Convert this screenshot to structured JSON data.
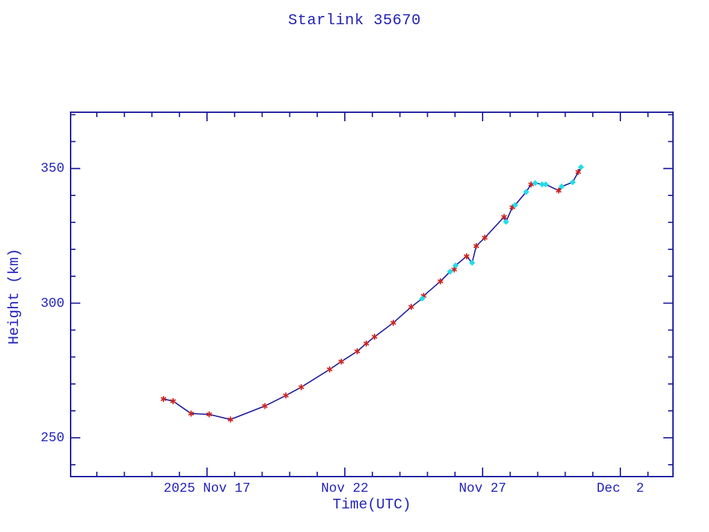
{
  "window": {
    "background": "#ffffff"
  },
  "colors": {
    "text": "#2323bb",
    "frame": "#1c1c9e",
    "line": "#1c1c9e",
    "observed_marker": "#cc2222",
    "predicted_marker": "#22dde8"
  },
  "chart_data": {
    "type": "line",
    "title": "Starlink 35670",
    "xlabel": "Time(UTC)",
    "ylabel": "Height (km)",
    "legend": "none",
    "grid": false,
    "x_axis": {
      "unit": "date UTC, expressed as day-of-November-2025 (Dec 2 = 32)",
      "range_days": [
        12.05,
        33.91
      ],
      "minor_tick_every_days": 1,
      "major_ticks": [
        {
          "day": 17,
          "label": "2025 Nov 17"
        },
        {
          "day": 22,
          "label": "Nov 22"
        },
        {
          "day": 27,
          "label": "Nov 27"
        },
        {
          "day": 32,
          "label": "Dec  2"
        }
      ]
    },
    "y_axis": {
      "unit": "km",
      "range_km": [
        235.6,
        370.9
      ],
      "minor_tick_every_km": 10,
      "major_ticks": [
        {
          "value": 250,
          "label": "250"
        },
        {
          "value": 300,
          "label": "300"
        },
        {
          "value": 350,
          "label": "350"
        }
      ]
    },
    "series": [
      {
        "name": "observed-height",
        "marker": "red-asterisk",
        "color": "#cc2222",
        "points": [
          [
            15.42,
            264.4
          ],
          [
            15.77,
            263.6
          ],
          [
            16.42,
            259.0
          ],
          [
            17.08,
            258.7
          ],
          [
            17.85,
            256.8
          ],
          [
            19.1,
            261.8
          ],
          [
            19.86,
            265.7
          ],
          [
            20.42,
            268.8
          ],
          [
            21.45,
            275.4
          ],
          [
            21.87,
            278.3
          ],
          [
            22.45,
            282.1
          ],
          [
            22.78,
            285.0
          ],
          [
            23.08,
            287.5
          ],
          [
            23.76,
            292.7
          ],
          [
            24.41,
            298.6
          ],
          [
            24.86,
            302.7
          ],
          [
            25.47,
            308.1
          ],
          [
            25.97,
            312.5
          ],
          [
            26.42,
            317.4
          ],
          [
            26.77,
            321.2
          ],
          [
            27.08,
            324.3
          ],
          [
            27.78,
            332.0
          ],
          [
            28.08,
            335.6
          ],
          [
            28.76,
            344.1
          ],
          [
            29.76,
            341.8
          ],
          [
            30.47,
            348.7
          ]
        ]
      },
      {
        "name": "predicted-height",
        "marker": "cyan-diamond",
        "color": "#22dde8",
        "points": [
          [
            24.81,
            301.7
          ],
          [
            25.82,
            311.7
          ],
          [
            26.02,
            314.0
          ],
          [
            26.62,
            315.0
          ],
          [
            27.85,
            330.2
          ],
          [
            28.18,
            336.4
          ],
          [
            28.58,
            341.3
          ],
          [
            28.91,
            344.6
          ],
          [
            29.16,
            344.1
          ],
          [
            29.29,
            344.1
          ],
          [
            29.87,
            343.3
          ],
          [
            30.27,
            344.9
          ],
          [
            30.57,
            350.5
          ]
        ]
      }
    ]
  }
}
